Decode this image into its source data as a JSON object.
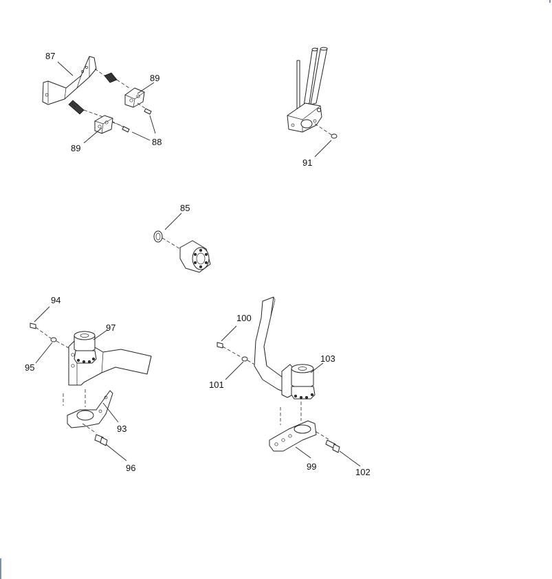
{
  "callouts": {
    "c85": "85",
    "c87": "87",
    "c88": "88",
    "c89a": "89",
    "c89b": "89",
    "c91": "91",
    "c93": "93",
    "c94": "94",
    "c95": "95",
    "c96": "96",
    "c97": "97",
    "c99": "99",
    "c100": "100",
    "c101": "101",
    "c102": "102",
    "c103": "103"
  },
  "colors": {
    "line": "#222222",
    "page": "#ffffff",
    "edge_mark": "#7b8fae"
  }
}
